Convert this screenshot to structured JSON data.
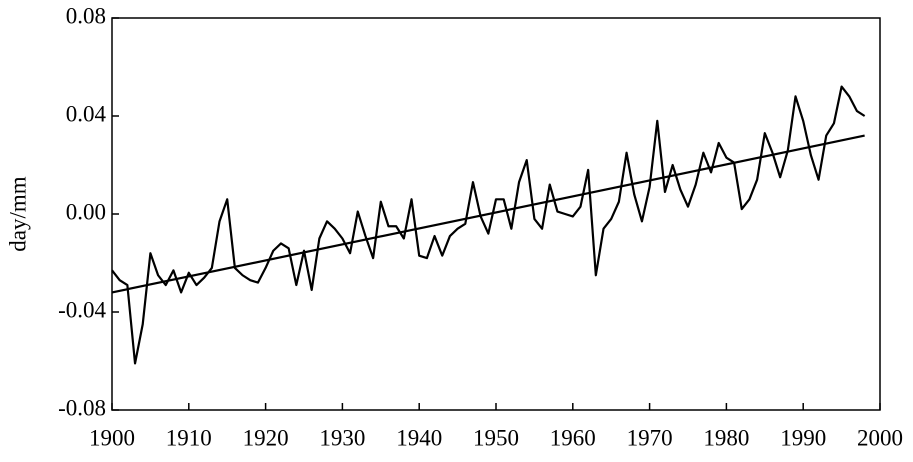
{
  "chart_data": {
    "type": "line",
    "y_label": "day/mm",
    "x": [
      1900,
      1901,
      1902,
      1903,
      1904,
      1905,
      1906,
      1907,
      1908,
      1909,
      1910,
      1911,
      1912,
      1913,
      1914,
      1915,
      1916,
      1917,
      1918,
      1919,
      1920,
      1921,
      1922,
      1923,
      1924,
      1925,
      1926,
      1927,
      1928,
      1929,
      1930,
      1931,
      1932,
      1933,
      1934,
      1935,
      1936,
      1937,
      1938,
      1939,
      1940,
      1941,
      1942,
      1943,
      1944,
      1945,
      1946,
      1947,
      1948,
      1949,
      1950,
      1951,
      1952,
      1953,
      1954,
      1955,
      1956,
      1957,
      1958,
      1959,
      1960,
      1961,
      1962,
      1963,
      1964,
      1965,
      1966,
      1967,
      1968,
      1969,
      1970,
      1971,
      1972,
      1973,
      1974,
      1975,
      1976,
      1977,
      1978,
      1979,
      1980,
      1981,
      1982,
      1983,
      1984,
      1985,
      1986,
      1987,
      1988,
      1989,
      1990,
      1991,
      1992,
      1993,
      1994,
      1995,
      1996,
      1997,
      1998
    ],
    "series": [
      {
        "color": "#000000",
        "values": [
          -0.023,
          -0.027,
          -0.029,
          -0.061,
          -0.045,
          -0.016,
          -0.025,
          -0.029,
          -0.023,
          -0.032,
          -0.024,
          -0.029,
          -0.026,
          -0.022,
          -0.003,
          0.006,
          -0.022,
          -0.025,
          -0.027,
          -0.028,
          -0.022,
          -0.015,
          -0.012,
          -0.014,
          -0.029,
          -0.015,
          -0.031,
          -0.01,
          -0.003,
          -0.006,
          -0.01,
          -0.016,
          0.001,
          -0.009,
          -0.018,
          0.005,
          -0.005,
          -0.005,
          -0.01,
          0.006,
          -0.017,
          -0.018,
          -0.009,
          -0.017,
          -0.009,
          -0.006,
          -0.004,
          0.013,
          -0.001,
          -0.008,
          0.006,
          0.006,
          -0.006,
          0.013,
          0.022,
          -0.002,
          -0.006,
          0.012,
          0.001,
          0.0,
          -0.001,
          0.003,
          0.018,
          -0.025,
          -0.006,
          -0.002,
          0.005,
          0.025,
          0.008,
          -0.003,
          0.011,
          0.038,
          0.009,
          0.02,
          0.01,
          0.003,
          0.012,
          0.025,
          0.017,
          0.029,
          0.023,
          0.021,
          0.002,
          0.006,
          0.014,
          0.033,
          0.025,
          0.015,
          0.026,
          0.048,
          0.038,
          0.024,
          0.014,
          0.032,
          0.037,
          0.052,
          0.048,
          0.042,
          0.04
        ]
      },
      {
        "color": "#000000",
        "x": [
          1900,
          1998
        ],
        "values": [
          -0.032,
          0.032
        ]
      }
    ],
    "xlim": [
      1900,
      2000
    ],
    "xticks": [
      1900,
      1910,
      1920,
      1930,
      1940,
      1950,
      1960,
      1970,
      1980,
      1990,
      2000
    ],
    "ylim": [
      -0.08,
      0.08
    ],
    "yticks": [
      -0.08,
      -0.04,
      {
        "value": 0,
        "label": "0.00"
      },
      0.04,
      0.08
    ]
  }
}
